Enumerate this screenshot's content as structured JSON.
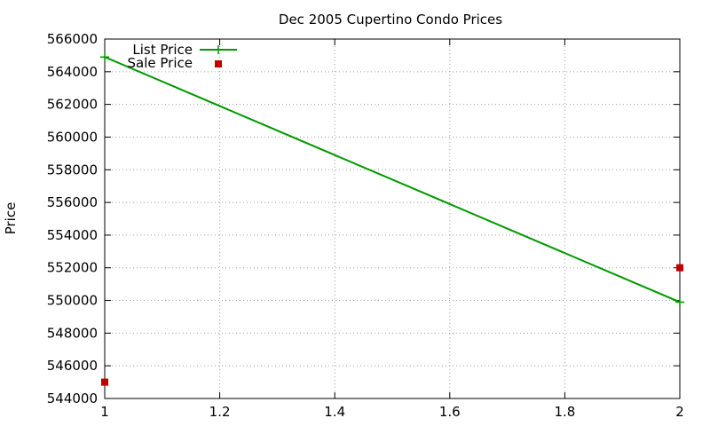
{
  "chart_data": {
    "type": "line",
    "title": "Dec 2005 Cupertino Condo Prices",
    "xlabel": "",
    "ylabel": "Price",
    "xlim": [
      1,
      2
    ],
    "ylim": [
      544000,
      566000
    ],
    "x_ticks": [
      1,
      1.2,
      1.4,
      1.6,
      1.8,
      2
    ],
    "x_tick_labels": [
      "1",
      "1.2",
      "1.4",
      "1.6",
      "1.8",
      "2"
    ],
    "y_ticks": [
      544000,
      546000,
      548000,
      550000,
      552000,
      554000,
      556000,
      558000,
      560000,
      562000,
      564000,
      566000
    ],
    "y_tick_labels": [
      "544000",
      "546000",
      "548000",
      "550000",
      "552000",
      "554000",
      "556000",
      "558000",
      "560000",
      "562000",
      "564000",
      "566000"
    ],
    "grid": true,
    "legend_position": "top-left",
    "series": [
      {
        "name": "List Price",
        "style": "line-with-plus-markers",
        "color": "#009900",
        "x": [
          1,
          2
        ],
        "values": [
          564900,
          549900
        ]
      },
      {
        "name": "Sale Price",
        "style": "square-markers",
        "color": "#bb0000",
        "x": [
          1,
          2
        ],
        "values": [
          545000,
          552000
        ]
      }
    ]
  }
}
